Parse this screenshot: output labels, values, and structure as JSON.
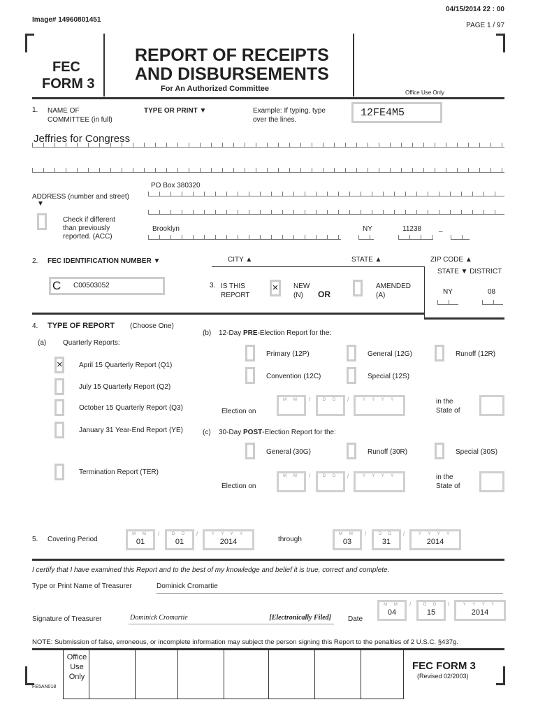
{
  "header": {
    "timestamp": "04/15/2014 22 : 00",
    "image_no": "Image# 14960801451",
    "page": "PAGE 1 / 97"
  },
  "form": {
    "fec": "FEC",
    "form3": "FORM 3",
    "title1": "REPORT OF RECEIPTS",
    "title2": "AND DISBURSEMENTS",
    "subtitle": "For An Authorized Committee",
    "office_use": "Office Use Only"
  },
  "s1": {
    "num": "1.",
    "label1": "NAME OF",
    "label2": "COMMITTEE (in full)",
    "type_or_print": "TYPE OR PRINT ▼",
    "example1": "Example: If typing, type",
    "example2": "over the lines.",
    "example_code": "12FE4M5",
    "committee_name": "Jeffries for Congress",
    "street": "PO Box 380320",
    "address_label": "ADDRESS (number and street)",
    "address_arrow": "▼",
    "check1": "Check if different",
    "check2": "than previously",
    "check3": "reported. (ACC)",
    "city": "Brooklyn",
    "state": "NY",
    "zip": "11238",
    "dash": "–",
    "city_label": "CITY ▲",
    "state_label": "STATE ▲",
    "zip_label": "ZIP CODE ▲"
  },
  "s2": {
    "num": "2.",
    "label": "FEC IDENTIFICATION NUMBER ▼",
    "prefix": "C",
    "id": "C00503052",
    "state_district": "STATE ▼ DISTRICT",
    "state": "NY",
    "district": "08"
  },
  "s3": {
    "num": "3.",
    "label1": "IS THIS",
    "label2": "REPORT",
    "new_checked": "×",
    "new1": "NEW",
    "new2": "(N)",
    "or": "OR",
    "amended1": "AMENDED",
    "amended2": "(A)"
  },
  "s4": {
    "num": "4.",
    "label": "TYPE OF REPORT",
    "choose": "(Choose One)",
    "a": "(a)",
    "quarterly": "Quarterly Reports:",
    "q_items": [
      {
        "label": "April 15 Quarterly Report (Q1)",
        "mark": "×"
      },
      {
        "label": "July 15 Quarterly Report (Q2)",
        "mark": ""
      },
      {
        "label": "October 15 Quarterly Report (Q3)",
        "mark": ""
      },
      {
        "label": "January 31 Year-End Report (YE)",
        "mark": ""
      },
      {
        "label": "Termination Report (TER)",
        "mark": ""
      }
    ],
    "b": "(b)",
    "pre_a": "12-Day ",
    "pre_b": "PRE",
    "pre_c": "-Election Report for the:",
    "pre_items": [
      "Primary (12P)",
      "General (12G)",
      "Runoff (12R)",
      "Convention (12C)",
      "Special (12S)"
    ],
    "c": "(c)",
    "post_a": "30-Day ",
    "post_b": "POST",
    "post_c": "-Election Report for the:",
    "post_items": [
      "General (30G)",
      "Runoff (30R)",
      "Special (30S)"
    ],
    "election_on": "Election on",
    "in_the": "in the",
    "state_of": "State of"
  },
  "ph": {
    "mm": "M M",
    "dd": "D D",
    "yyyy": "Y Y Y Y",
    "slash": "/"
  },
  "s5": {
    "num": "5.",
    "label": "Covering Period",
    "from_mm": "01",
    "from_dd": "01",
    "from_yyyy": "2014",
    "through": "through",
    "to_mm": "03",
    "to_dd": "31",
    "to_yyyy": "2014"
  },
  "cert": {
    "text": "I certify that I have examined this Report and to the best of my knowledge and belief it is true, correct and complete.",
    "treasurer_label": "Type or Print Name of Treasurer",
    "treasurer": "Dominick Cromartie",
    "signature_label": "Signature of Treasurer",
    "signature": "Dominick Cromartie",
    "efiled": "[Electronically Filed]",
    "date_label": "Date",
    "mm": "04",
    "dd": "15",
    "yyyy": "2014"
  },
  "note": "NOTE: Submission of false, erroneous, or incomplete information may subject the person signing this Report to the penalties of 2 U.S.C. §437g.",
  "footer": {
    "office1": "Office",
    "office2": "Use",
    "office3": "Only",
    "form": "FEC FORM 3",
    "revised": "(Revised 02/2003)",
    "code": "FE5AN018"
  }
}
